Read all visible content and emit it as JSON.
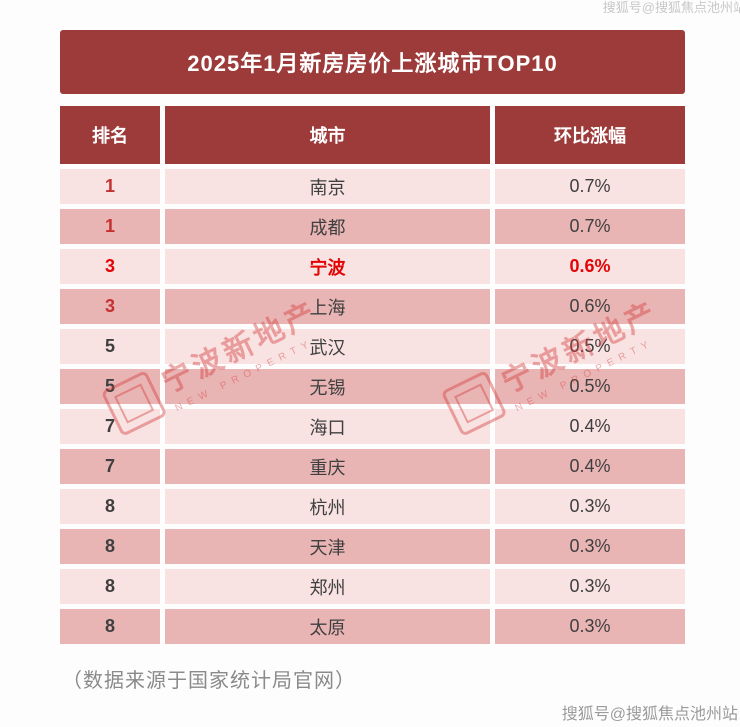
{
  "page": {
    "title_banner": "2025年1月新房房价上涨城市TOP10",
    "footer_note": "（数据来源于国家统计局官网）"
  },
  "watermarks": {
    "stamp_text": "宁波新地产",
    "stamp_subtext": "NEW PROPERTY",
    "credit_top": "搜狐号@搜狐焦点池州站",
    "credit_bottom": "搜狐号@搜狐焦点池州站"
  },
  "colors": {
    "header_bg": "#9d3b3b",
    "row_light": "#f8e2e2",
    "row_dark": "#e9b4b4",
    "rank_red": "#c53030",
    "highlight_red": "#e30505",
    "body_text": "#3f3f3f",
    "stamp_red": "#d63c3c"
  },
  "chart_data": {
    "type": "table",
    "title": "2025年1月新房房价上涨城市TOP10",
    "columns": [
      "排名",
      "城市",
      "环比涨幅"
    ],
    "rows": [
      {
        "rank": "1",
        "city": "南京",
        "change": "0.7%",
        "rank_red": true,
        "highlight": false
      },
      {
        "rank": "1",
        "city": "成都",
        "change": "0.7%",
        "rank_red": true,
        "highlight": false
      },
      {
        "rank": "3",
        "city": "宁波",
        "change": "0.6%",
        "rank_red": true,
        "highlight": true
      },
      {
        "rank": "3",
        "city": "上海",
        "change": "0.6%",
        "rank_red": true,
        "highlight": false
      },
      {
        "rank": "5",
        "city": "武汉",
        "change": "0.5%",
        "rank_red": false,
        "highlight": false
      },
      {
        "rank": "5",
        "city": "无锡",
        "change": "0.5%",
        "rank_red": false,
        "highlight": false
      },
      {
        "rank": "7",
        "city": "海口",
        "change": "0.4%",
        "rank_red": false,
        "highlight": false
      },
      {
        "rank": "7",
        "city": "重庆",
        "change": "0.4%",
        "rank_red": false,
        "highlight": false
      },
      {
        "rank": "8",
        "city": "杭州",
        "change": "0.3%",
        "rank_red": false,
        "highlight": false
      },
      {
        "rank": "8",
        "city": "天津",
        "change": "0.3%",
        "rank_red": false,
        "highlight": false
      },
      {
        "rank": "8",
        "city": "郑州",
        "change": "0.3%",
        "rank_red": false,
        "highlight": false
      },
      {
        "rank": "8",
        "city": "太原",
        "change": "0.3%",
        "rank_red": false,
        "highlight": false
      }
    ],
    "source_note": "（数据来源于国家统计局官网）"
  }
}
